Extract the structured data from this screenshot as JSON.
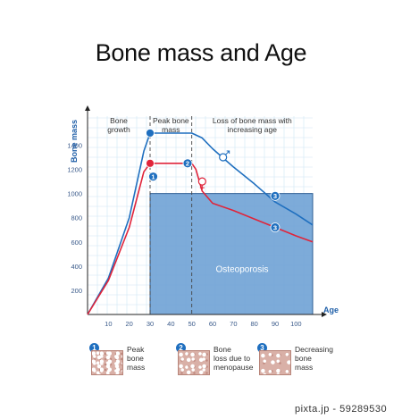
{
  "title": "Bone mass and Age",
  "chart_data": {
    "type": "line",
    "xlabel": "Age",
    "ylabel": "Bone mass",
    "xlim": [
      0,
      108
    ],
    "ylim": [
      0,
      1640
    ],
    "x_ticks": [
      10,
      20,
      30,
      40,
      50,
      60,
      70,
      80,
      90,
      100
    ],
    "y_ticks": [
      200,
      400,
      600,
      800,
      1000,
      1200,
      1400
    ],
    "grid": true,
    "phases": [
      {
        "label": "Bone\ngrowth",
        "x_start": 0,
        "x_end": 30
      },
      {
        "label": "Peak bone\nmass",
        "x_start": 30,
        "x_end": 50
      },
      {
        "label": "Loss of bone mass with\nincreasing age",
        "x_start": 50,
        "x_end": 108
      }
    ],
    "phase_dividers": [
      30,
      50
    ],
    "osteoporosis_region": {
      "label": "Osteoporosis",
      "x_start": 30,
      "x_end": 108,
      "y_max": 1000
    },
    "series": [
      {
        "color": "#1f6fbf",
        "points": [
          [
            0,
            0
          ],
          [
            10,
            300
          ],
          [
            20,
            800
          ],
          [
            27,
            1350
          ],
          [
            30,
            1500
          ],
          [
            35,
            1500
          ],
          [
            50,
            1500
          ],
          [
            55,
            1460
          ],
          [
            60,
            1370
          ],
          [
            70,
            1220
          ],
          [
            80,
            1080
          ],
          [
            90,
            930
          ],
          [
            100,
            830
          ],
          [
            108,
            740
          ]
        ]
      },
      {
        "color": "#e0243a",
        "points": [
          [
            0,
            0
          ],
          [
            10,
            280
          ],
          [
            20,
            720
          ],
          [
            27,
            1180
          ],
          [
            30,
            1250
          ],
          [
            35,
            1250
          ],
          [
            50,
            1250
          ],
          [
            52,
            1200
          ],
          [
            55,
            1020
          ],
          [
            60,
            920
          ],
          [
            70,
            860
          ],
          [
            80,
            790
          ],
          [
            90,
            720
          ],
          [
            100,
            650
          ],
          [
            108,
            600
          ]
        ]
      }
    ],
    "markers": [
      {
        "series": 0,
        "x": 30,
        "y": 1500,
        "style": "filled"
      },
      {
        "series": 1,
        "x": 30,
        "y": 1250,
        "style": "filled"
      },
      {
        "series": 1,
        "x": 48,
        "y": 1250,
        "style": "filled"
      },
      {
        "series": 0,
        "x": 65,
        "y": 1300,
        "style": "open-male"
      },
      {
        "series": 1,
        "x": 55,
        "y": 1100,
        "style": "open-female"
      }
    ],
    "badges": [
      {
        "text": "1",
        "x": 31.5,
        "y": 1140
      },
      {
        "text": "2",
        "x": 48,
        "y": 1250
      },
      {
        "text": "3",
        "x": 90,
        "y": 980
      },
      {
        "text": "3",
        "x": 90,
        "y": 720
      }
    ]
  },
  "legend": [
    {
      "number": "1",
      "text": "Peak\nbone\nmass"
    },
    {
      "number": "2",
      "text": "Bone\nloss due to\nmenopause"
    },
    {
      "number": "3",
      "text": "Decreasing\nbone\nmass"
    }
  ],
  "watermark": "pixta.jp - 59289530"
}
